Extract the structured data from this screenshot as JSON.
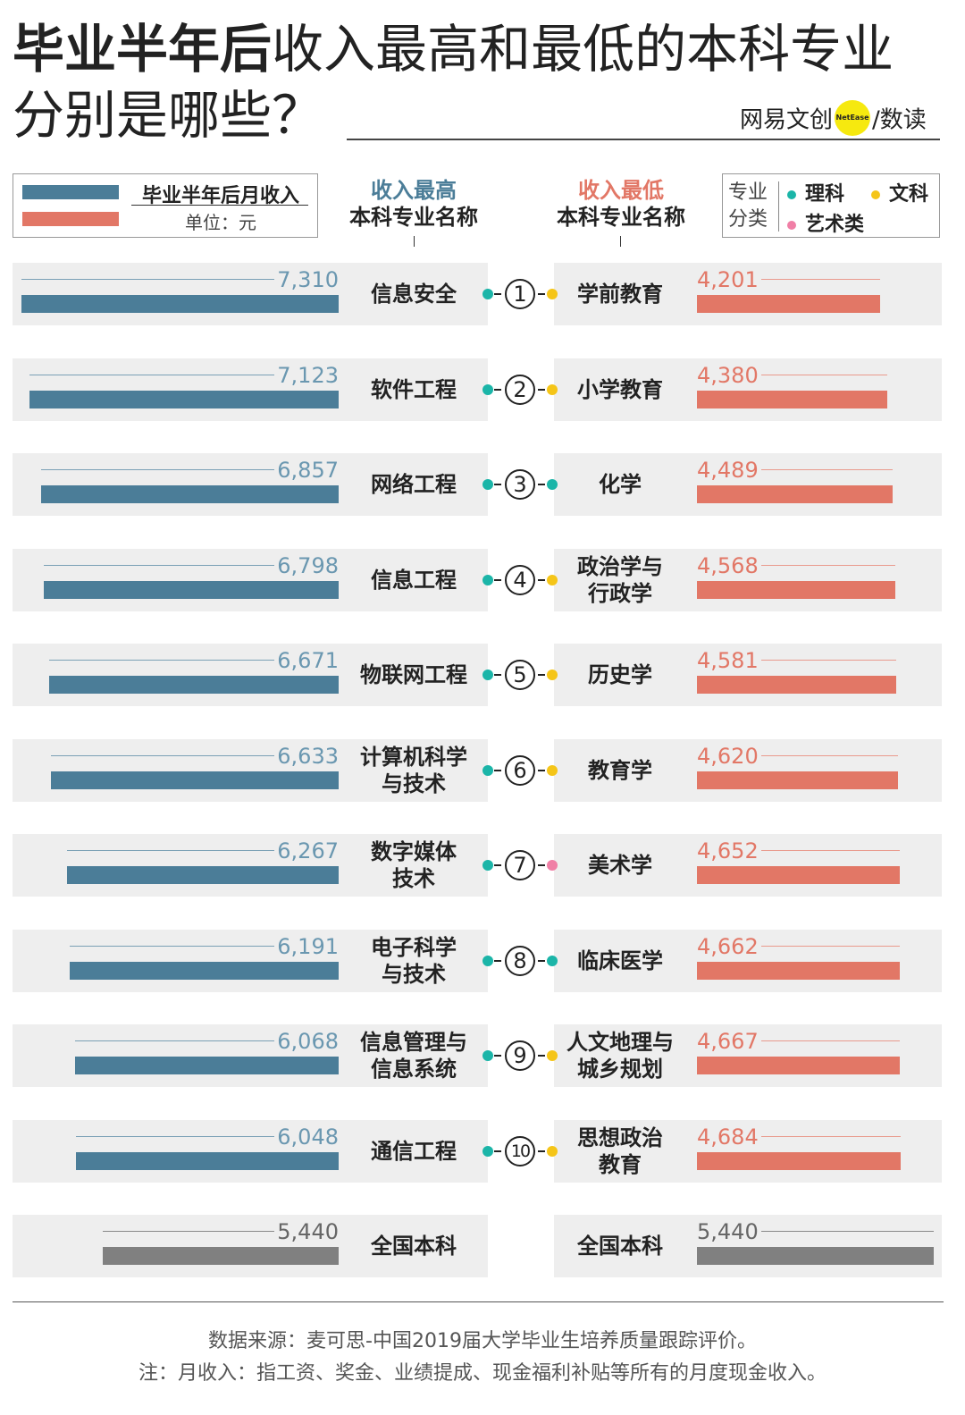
{
  "header": {
    "title_part1": "毕业半年后",
    "title_part2": "收入",
    "title_mark_high": "最高",
    "title_part3": "和",
    "title_mark_low": "最低",
    "title_part4": "的本科专业",
    "title_line2": "分别是哪些？",
    "brand_left": "网易文创",
    "brand_circle": "NetEase",
    "brand_right": "/数读"
  },
  "legend": {
    "label": "毕业半年后月收入",
    "unit": "单位：元"
  },
  "columns": {
    "high_title": "收入最高",
    "high_subtitle": "本科专业名称",
    "low_title": "收入最低",
    "low_subtitle": "本科专业名称"
  },
  "categories_legend": {
    "title": "专业分类",
    "science": "理科",
    "liberal_arts": "文科",
    "art": "艺术类"
  },
  "colors": {
    "blue_bar": "#4b7d98",
    "red_bar": "#e27766",
    "gray_bar": "#808080",
    "science_dot": "#1bb5a8",
    "liberal_arts_dot": "#f5c518",
    "art_dot": "#f07fa6"
  },
  "chart_data": {
    "type": "bar",
    "value_axis_max": 7310,
    "ranks": [
      "1",
      "2",
      "3",
      "4",
      "5",
      "6",
      "7",
      "8",
      "9",
      "10"
    ],
    "highest": [
      {
        "major": "信息安全",
        "value": 7310,
        "category": "science"
      },
      {
        "major": "软件工程",
        "value": 7123,
        "category": "science"
      },
      {
        "major": "网络工程",
        "value": 6857,
        "category": "science"
      },
      {
        "major": "信息工程",
        "value": 6798,
        "category": "science"
      },
      {
        "major": "物联网工程",
        "value": 6671,
        "category": "science"
      },
      {
        "major": "计算机科学\n与技术",
        "value": 6633,
        "category": "science"
      },
      {
        "major": "数字媒体\n技术",
        "value": 6267,
        "category": "science"
      },
      {
        "major": "电子科学\n与技术",
        "value": 6191,
        "category": "science"
      },
      {
        "major": "信息管理与\n信息系统",
        "value": 6068,
        "category": "science"
      },
      {
        "major": "通信工程",
        "value": 6048,
        "category": "science"
      }
    ],
    "lowest": [
      {
        "major": "学前教育",
        "value": 4201,
        "category": "liberal_arts"
      },
      {
        "major": "小学教育",
        "value": 4380,
        "category": "liberal_arts"
      },
      {
        "major": "化学",
        "value": 4489,
        "category": "science"
      },
      {
        "major": "政治学与\n行政学",
        "value": 4568,
        "category": "liberal_arts"
      },
      {
        "major": "历史学",
        "value": 4581,
        "category": "liberal_arts"
      },
      {
        "major": "教育学",
        "value": 4620,
        "category": "liberal_arts"
      },
      {
        "major": "美术学",
        "value": 4652,
        "category": "art"
      },
      {
        "major": "临床医学",
        "value": 4662,
        "category": "science"
      },
      {
        "major": "人文地理与\n城乡规划",
        "value": 4667,
        "category": "liberal_arts"
      },
      {
        "major": "思想政治\n教育",
        "value": 4684,
        "category": "liberal_arts"
      }
    ],
    "national": {
      "label": "全国本科",
      "value": 5440
    }
  },
  "footer": {
    "source": "数据来源：麦可思-中国2019届大学毕业生培养质量跟踪评价。",
    "note": "注：月收入：指工资、奖金、业绩提成、现金福利补贴等所有的月度现金收入。"
  }
}
